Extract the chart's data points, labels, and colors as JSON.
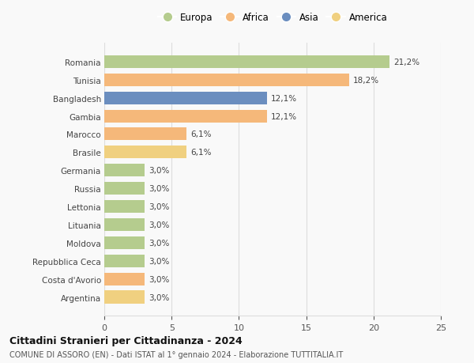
{
  "categories": [
    "Argentina",
    "Costa d'Avorio",
    "Repubblica Ceca",
    "Moldova",
    "Lituania",
    "Lettonia",
    "Russia",
    "Germania",
    "Brasile",
    "Marocco",
    "Gambia",
    "Bangladesh",
    "Tunisia",
    "Romania"
  ],
  "values": [
    3.0,
    3.0,
    3.0,
    3.0,
    3.0,
    3.0,
    3.0,
    3.0,
    6.1,
    6.1,
    12.1,
    12.1,
    18.2,
    21.2
  ],
  "labels": [
    "3,0%",
    "3,0%",
    "3,0%",
    "3,0%",
    "3,0%",
    "3,0%",
    "3,0%",
    "3,0%",
    "6,1%",
    "6,1%",
    "12,1%",
    "12,1%",
    "18,2%",
    "21,2%"
  ],
  "colors": [
    "#f0d080",
    "#f5b87a",
    "#b5cc8e",
    "#b5cc8e",
    "#b5cc8e",
    "#b5cc8e",
    "#b5cc8e",
    "#b5cc8e",
    "#f0d080",
    "#f5b87a",
    "#f5b87a",
    "#6b8ebf",
    "#f5b87a",
    "#b5cc8e"
  ],
  "legend": [
    {
      "label": "Europa",
      "color": "#b5cc8e"
    },
    {
      "label": "Africa",
      "color": "#f5b87a"
    },
    {
      "label": "Asia",
      "color": "#6b8ebf"
    },
    {
      "label": "America",
      "color": "#f0d080"
    }
  ],
  "xlim": [
    0,
    25
  ],
  "xticks": [
    0,
    5,
    10,
    15,
    20,
    25
  ],
  "title": "Cittadini Stranieri per Cittadinanza - 2024",
  "subtitle": "COMUNE DI ASSORO (EN) - Dati ISTAT al 1° gennaio 2024 - Elaborazione TUTTITALIA.IT",
  "background_color": "#f9f9f9",
  "grid_color": "#dddddd",
  "bar_height": 0.7
}
